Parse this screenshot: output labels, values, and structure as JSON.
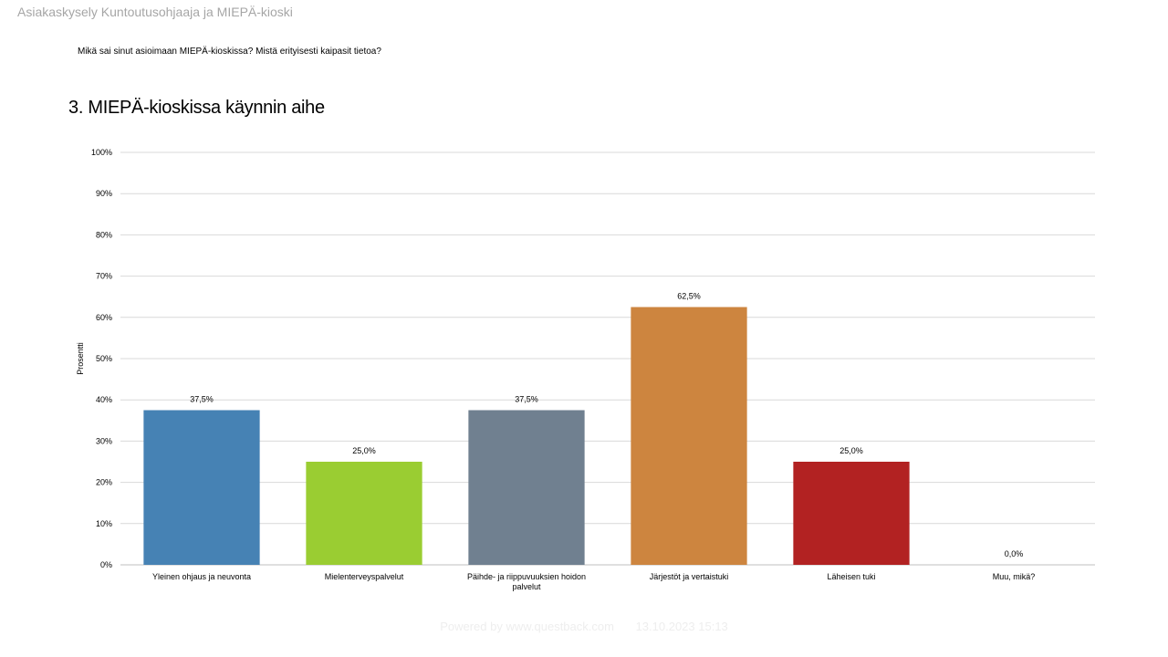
{
  "header": {
    "title": "Asiakaskysely Kuntoutusohjaaja ja MIEPÄ-kioski"
  },
  "question": "Mikä sai sinut asioimaan MIEPÄ-kioskissa? Mistä erityisesti kaipasit tietoa?",
  "chart_data": {
    "type": "bar",
    "title": "3. MIEPÄ-kioskissa käynnin aihe",
    "xlabel": "",
    "ylabel": "Prosentti",
    "ylim": [
      0,
      100
    ],
    "yticks": [
      "0%",
      "10%",
      "20%",
      "30%",
      "40%",
      "50%",
      "60%",
      "70%",
      "80%",
      "90%",
      "100%"
    ],
    "grid": true,
    "categories": [
      "Yleinen ohjaus ja neuvonta",
      "Mielenterveyspalvelut",
      "Päihde- ja riippuvuuksien hoidon palvelut",
      "Järjestöt ja vertaistuki",
      "Läheisen tuki",
      "Muu, mikä?"
    ],
    "category_lines": [
      [
        "Yleinen ohjaus ja neuvonta"
      ],
      [
        "Mielenterveyspalvelut"
      ],
      [
        "Päihde- ja riippuvuuksien hoidon",
        "palvelut"
      ],
      [
        "Järjestöt ja vertaistuki"
      ],
      [
        "Läheisen tuki"
      ],
      [
        "Muu, mikä?"
      ]
    ],
    "values": [
      37.5,
      25.0,
      37.5,
      62.5,
      25.0,
      0.0
    ],
    "value_labels": [
      "37,5%",
      "25,0%",
      "37,5%",
      "62,5%",
      "25,0%",
      "0,0%"
    ],
    "colors": [
      "#4682b4",
      "#9acd32",
      "#708090",
      "#cd853f",
      "#b22222",
      "#8b008b"
    ]
  },
  "footer": {
    "powered_by": "Powered by www.questback.com",
    "timestamp": "13.10.2023 15:13"
  }
}
